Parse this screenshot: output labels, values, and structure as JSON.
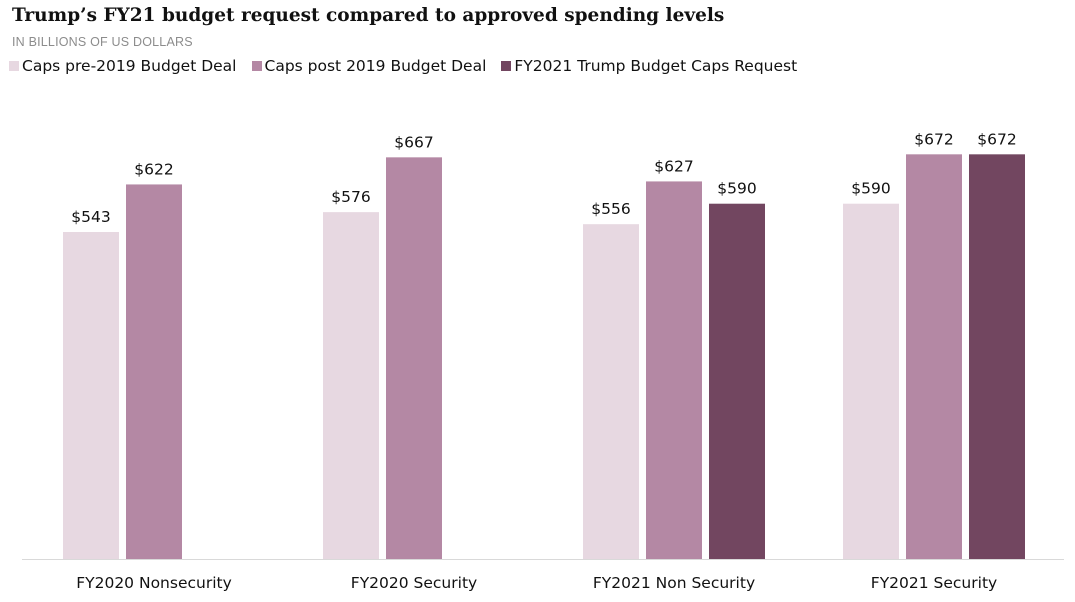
{
  "title": "Trump’s FY21 budget request compared to approved spending levels",
  "subtitle": "IN BILLIONS OF US DOLLARS",
  "legend": [
    {
      "label": "Caps pre-2019 Budget Deal",
      "color": "#e7d8e1"
    },
    {
      "label": "Caps post 2019 Budget Deal",
      "color": "#b488a4"
    },
    {
      "label": "FY2021 Trump Budget Caps Request",
      "color": "#724660"
    }
  ],
  "chart_data": {
    "type": "bar",
    "title": "Trump’s FY21 budget request compared to approved spending levels",
    "subtitle": "IN BILLIONS OF US DOLLARS",
    "categories": [
      "FY2020 Nonsecurity",
      "FY2020 Security",
      "FY2021 Non Security",
      "FY2021 Security"
    ],
    "series": [
      {
        "name": "Caps pre-2019 Budget Deal",
        "color": "#e7d8e1",
        "values": [
          543,
          576,
          556,
          590
        ],
        "labels": [
          "$543",
          "$576",
          "$556",
          "$590"
        ]
      },
      {
        "name": "Caps post 2019 Budget Deal",
        "color": "#b488a4",
        "values": [
          622,
          667,
          627,
          672
        ],
        "labels": [
          "$622",
          "$667",
          "$627",
          "$672"
        ]
      },
      {
        "name": "FY2021 Trump Budget Caps Request",
        "color": "#724660",
        "values": [
          null,
          null,
          590,
          672
        ],
        "labels": [
          null,
          null,
          "$590",
          "$672"
        ]
      }
    ],
    "ylim": [
      0,
      750
    ],
    "grid": false,
    "legend_position": "top-left"
  }
}
